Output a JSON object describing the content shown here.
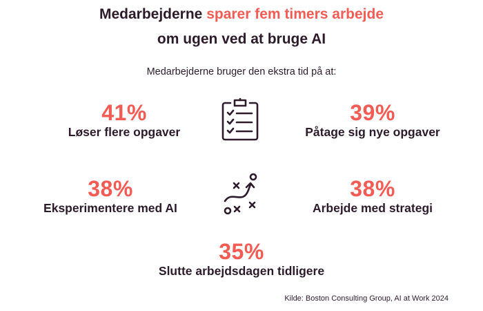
{
  "header": {
    "title_part1": "Medarbejderne ",
    "title_highlight": "sparer fem timers arbejde",
    "title_line2": "om ugen ved at bruge AI",
    "subtitle": "Medarbejderne bruger den ekstra tid på at:"
  },
  "stats": [
    {
      "value": "41%",
      "label": "Løser flere opgaver"
    },
    {
      "value": "39%",
      "label": "Påtage sig nye opgaver"
    },
    {
      "value": "38%",
      "label": "Eksperimentere med AI"
    },
    {
      "value": "38%",
      "label": "Arbejde med strategi"
    },
    {
      "value": "35%",
      "label": "Slutte arbejdsdagen tidligere"
    }
  ],
  "icons": {
    "top_center": "clipboard-checklist-icon",
    "middle_center": "strategy-playbook-icon"
  },
  "colors": {
    "accent": "#f25c54",
    "text": "#2d1b2b"
  },
  "source": "Kilde: Boston Consulting Group, AI at Work 2024"
}
